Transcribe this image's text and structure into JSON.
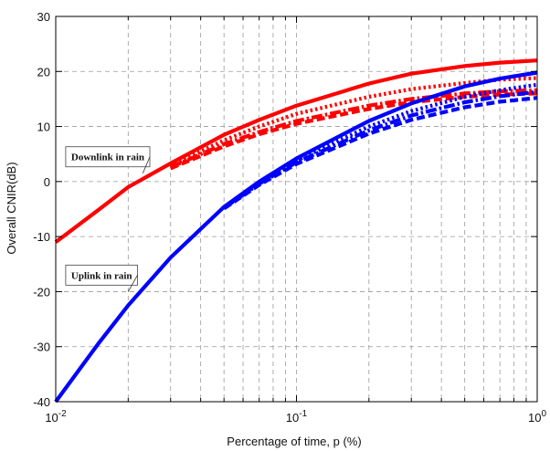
{
  "chart_data": {
    "type": "line",
    "xscale": "log",
    "xlim": [
      0.01,
      1
    ],
    "ylim": [
      -40,
      30
    ],
    "yticks": [
      -40,
      -30,
      -20,
      -10,
      0,
      10,
      20,
      30
    ],
    "xticks": [
      {
        "base": "10",
        "exp": "-2"
      },
      {
        "base": "10",
        "exp": "-1"
      },
      {
        "base": "10",
        "exp": "0"
      }
    ],
    "xlabel": "Percentage of time, p (%)",
    "ylabel": "Overall CNIR(dB)",
    "grid": true,
    "annotations": [
      {
        "text": "Downlink in rain",
        "x": 0.011,
        "y": 4.5,
        "target": [
          0.023,
          1.5
        ]
      },
      {
        "text": "Uplink in rain",
        "x": 0.011,
        "y": -17,
        "target": [
          0.02,
          -20
        ]
      }
    ],
    "series": [
      {
        "group": "downlink",
        "style": "solid",
        "color": "#ff0000",
        "x": [
          0.01,
          0.015,
          0.02,
          0.03,
          0.05,
          0.07,
          0.1,
          0.2,
          0.3,
          0.5,
          0.7,
          1.0
        ],
        "y": [
          -11,
          -5.2,
          -1,
          3.3,
          8.5,
          11.2,
          13.8,
          17.8,
          19.6,
          21.0,
          21.6,
          22.0
        ]
      },
      {
        "group": "downlink",
        "style": "dotted",
        "color": "#ff0000",
        "x": [
          0.03,
          0.05,
          0.07,
          0.1,
          0.2,
          0.3,
          0.5,
          0.7,
          1.0
        ],
        "y": [
          2.8,
          7.5,
          10.0,
          12.3,
          15.4,
          16.8,
          17.9,
          18.5,
          18.8
        ]
      },
      {
        "group": "downlink",
        "style": "dashdot",
        "color": "#ff0000",
        "x": [
          0.03,
          0.05,
          0.07,
          0.1,
          0.2,
          0.3,
          0.5,
          0.7,
          1.0
        ],
        "y": [
          2.6,
          6.8,
          9.0,
          11.0,
          13.8,
          15.0,
          16.0,
          16.4,
          16.6
        ]
      },
      {
        "group": "downlink",
        "style": "dashed",
        "color": "#ff0000",
        "x": [
          0.03,
          0.05,
          0.07,
          0.1,
          0.2,
          0.3,
          0.5,
          0.7,
          1.0
        ],
        "y": [
          2.4,
          6.4,
          8.6,
          10.5,
          13.2,
          14.4,
          15.4,
          15.8,
          16.0
        ]
      },
      {
        "group": "uplink",
        "style": "solid",
        "color": "#0000ff",
        "x": [
          0.01,
          0.015,
          0.02,
          0.03,
          0.05,
          0.07,
          0.1,
          0.2,
          0.3,
          0.5,
          0.7,
          1.0
        ],
        "y": [
          -40,
          -29.5,
          -22.5,
          -13.8,
          -4.6,
          0,
          4.2,
          11.0,
          14.2,
          17.3,
          18.7,
          19.8
        ]
      },
      {
        "group": "uplink",
        "style": "dotted",
        "color": "#0000ff",
        "x": [
          0.05,
          0.07,
          0.1,
          0.2,
          0.3,
          0.5,
          0.7,
          1.0
        ],
        "y": [
          -4.7,
          -0.2,
          3.8,
          10.0,
          12.8,
          15.4,
          16.6,
          17.6
        ]
      },
      {
        "group": "uplink",
        "style": "dashdot",
        "color": "#0000ff",
        "x": [
          0.05,
          0.07,
          0.1,
          0.2,
          0.3,
          0.5,
          0.7,
          1.0
        ],
        "y": [
          -4.8,
          -0.4,
          3.5,
          9.3,
          12.0,
          14.4,
          15.5,
          16.3
        ]
      },
      {
        "group": "uplink",
        "style": "dashed",
        "color": "#0000ff",
        "x": [
          0.05,
          0.07,
          0.1,
          0.2,
          0.3,
          0.5,
          0.7,
          1.0
        ],
        "y": [
          -4.9,
          -0.6,
          3.2,
          8.7,
          11.2,
          13.5,
          14.5,
          15.2
        ]
      }
    ]
  }
}
